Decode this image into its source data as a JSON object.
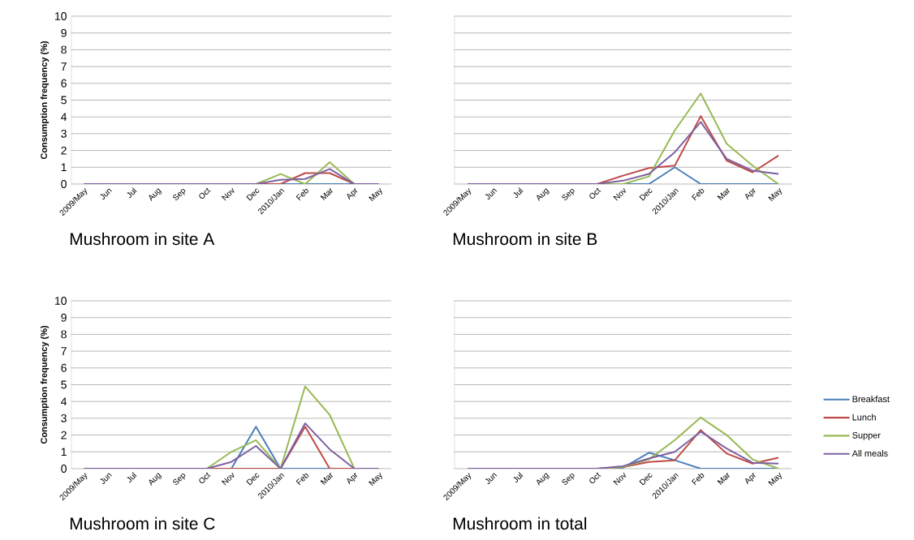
{
  "chart_data": [
    {
      "type": "line",
      "title": "Mushroom in site A",
      "ylabel": "Consumption frequency (%)",
      "categories": [
        "2009/May",
        "Jun",
        "Jul",
        "Aug",
        "Sep",
        "Oct",
        "Nov",
        "Dec",
        "2010/Jan",
        "Feb",
        "Mar",
        "Apr",
        "May"
      ],
      "ylim": [
        0,
        10
      ],
      "yticks": [
        0,
        1,
        2,
        3,
        4,
        5,
        6,
        7,
        8,
        9,
        10
      ],
      "grid": "y",
      "legend": false,
      "series": [
        {
          "color": "#4a7ebb",
          "values": [
            null,
            null,
            null,
            null,
            null,
            null,
            null,
            null,
            0,
            0,
            0,
            0,
            null
          ]
        },
        {
          "color": "#be4b48",
          "values": [
            null,
            null,
            null,
            null,
            null,
            null,
            null,
            0,
            0,
            0.65,
            0.65,
            0,
            null
          ]
        },
        {
          "color": "#98b954",
          "values": [
            null,
            null,
            null,
            null,
            null,
            null,
            null,
            0,
            0.6,
            0,
            1.3,
            0,
            null
          ]
        },
        {
          "color": "#7d60a0",
          "values": [
            0,
            0,
            0,
            0,
            0,
            0,
            0,
            0,
            0.25,
            0.3,
            0.9,
            0,
            0
          ]
        }
      ]
    },
    {
      "type": "line",
      "title": "Mushroom in site B",
      "categories": [
        "2009/May",
        "Jun",
        "Jul",
        "Aug",
        "Sep",
        "Oct",
        "Nov",
        "Dec",
        "2010/Jan",
        "Feb",
        "Mar",
        "Apr",
        "May"
      ],
      "ylim": [
        0,
        10
      ],
      "yticks": [
        0,
        1,
        2,
        3,
        4,
        5,
        6,
        7,
        8,
        9,
        10
      ],
      "grid": "y",
      "legend": false,
      "tick_labels": "x",
      "series": [
        {
          "color": "#4a7ebb",
          "values": [
            null,
            null,
            null,
            null,
            null,
            null,
            0,
            0,
            1.0,
            0,
            0,
            0,
            0
          ]
        },
        {
          "color": "#be4b48",
          "values": [
            null,
            null,
            null,
            null,
            null,
            0,
            0.5,
            0.95,
            1.1,
            4.05,
            1.4,
            0.7,
            1.7
          ]
        },
        {
          "color": "#98b954",
          "values": [
            null,
            null,
            null,
            null,
            null,
            0,
            0,
            0.45,
            3.2,
            5.4,
            2.4,
            1.1,
            0
          ]
        },
        {
          "color": "#7d60a0",
          "values": [
            0,
            0,
            0,
            0,
            0,
            0,
            0.2,
            0.6,
            1.9,
            3.7,
            1.5,
            0.8,
            0.6
          ]
        }
      ]
    },
    {
      "type": "line",
      "title": "Mushroom in site C",
      "ylabel": "Consumption frequency (%)",
      "categories": [
        "2009/May",
        "Jun",
        "Jul",
        "Aug",
        "Sep",
        "Oct",
        "Nov",
        "Dec",
        "2010/Jan",
        "Feb",
        "Mar",
        "Apr",
        "May"
      ],
      "ylim": [
        0,
        10
      ],
      "yticks": [
        0,
        1,
        2,
        3,
        4,
        5,
        6,
        7,
        8,
        9,
        10
      ],
      "grid": "y",
      "legend": false,
      "series": [
        {
          "color": "#4a7ebb",
          "values": [
            null,
            null,
            null,
            null,
            null,
            null,
            0,
            2.5,
            0,
            0,
            0,
            null,
            null
          ]
        },
        {
          "color": "#be4b48",
          "values": [
            null,
            null,
            null,
            null,
            null,
            0,
            0,
            0,
            0,
            2.5,
            0,
            0,
            null
          ]
        },
        {
          "color": "#98b954",
          "values": [
            null,
            null,
            null,
            null,
            null,
            0,
            1.0,
            1.7,
            0,
            4.9,
            3.2,
            0,
            null
          ]
        },
        {
          "color": "#7d60a0",
          "values": [
            0,
            0,
            0,
            0,
            0,
            0,
            0.4,
            1.35,
            0,
            2.7,
            1.15,
            0,
            0
          ]
        }
      ]
    },
    {
      "type": "line",
      "title": "Mushroom in total",
      "categories": [
        "2009/May",
        "Jun",
        "Jul",
        "Aug",
        "Sep",
        "Oct",
        "Nov",
        "Dec",
        "2010/Jan",
        "Feb",
        "Mar",
        "Apr",
        "May"
      ],
      "ylim": [
        0,
        10
      ],
      "yticks": [
        0,
        1,
        2,
        3,
        4,
        5,
        6,
        7,
        8,
        9,
        10
      ],
      "grid": "y",
      "legend": "right",
      "tick_labels": "x",
      "series": [
        {
          "name": "Breakfast",
          "color": "#4a7ebb",
          "values": [
            null,
            null,
            null,
            null,
            null,
            0,
            0.05,
            0.95,
            0.5,
            0,
            0,
            0,
            0
          ]
        },
        {
          "name": "Lunch",
          "color": "#be4b48",
          "values": [
            null,
            null,
            null,
            null,
            null,
            0,
            0.1,
            0.4,
            0.5,
            2.3,
            0.9,
            0.3,
            0.65
          ]
        },
        {
          "name": "Supper",
          "color": "#98b954",
          "values": [
            null,
            null,
            null,
            null,
            null,
            0,
            0.1,
            0.55,
            1.7,
            3.05,
            2.0,
            0.55,
            0
          ]
        },
        {
          "name": "All meals",
          "color": "#7d60a0",
          "values": [
            0,
            0,
            0,
            0,
            0,
            0,
            0.15,
            0.6,
            1.0,
            2.2,
            1.2,
            0.35,
            0.3
          ]
        }
      ]
    }
  ]
}
